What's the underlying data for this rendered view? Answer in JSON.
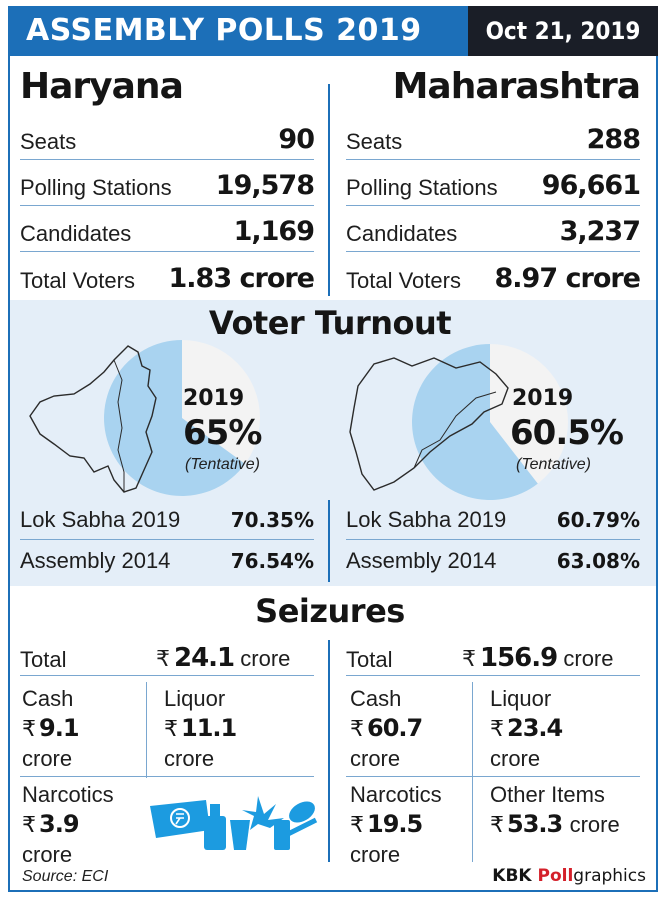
{
  "header": {
    "title": "ASSEMBLY POLLS 2019",
    "date": "Oct 21, 2019"
  },
  "states": [
    {
      "name": "Haryana",
      "stats": [
        {
          "label": "Seats",
          "value": "90"
        },
        {
          "label": "Polling Stations",
          "value": "19,578"
        },
        {
          "label": "Candidates",
          "value": "1,169"
        },
        {
          "label": "Total Voters",
          "value": "1.83 crore"
        }
      ],
      "turnout": {
        "year": "2019",
        "percent": "65%",
        "percent_value": 65,
        "note": "(Tentative)",
        "history": [
          {
            "label": "Lok Sabha 2019",
            "value": "70.35%"
          },
          {
            "label": "Assembly 2014",
            "value": "76.54%"
          }
        ]
      },
      "seizures": {
        "total_label": "Total",
        "total_value": "24.1",
        "total_unit": "crore",
        "cash_label": "Cash",
        "cash_value": "9.1",
        "cash_unit": "crore",
        "liquor_label": "Liquor",
        "liquor_value": "11.1",
        "liquor_unit": "crore",
        "narcotics_label": "Narcotics",
        "narcotics_value": "3.9",
        "narcotics_unit": "crore"
      }
    },
    {
      "name": "Maharashtra",
      "stats": [
        {
          "label": "Seats",
          "value": "288"
        },
        {
          "label": "Polling Stations",
          "value": "96,661"
        },
        {
          "label": "Candidates",
          "value": "3,237"
        },
        {
          "label": "Total Voters",
          "value": "8.97 crore"
        }
      ],
      "turnout": {
        "year": "2019",
        "percent": "60.5%",
        "percent_value": 60.5,
        "note": "(Tentative)",
        "history": [
          {
            "label": "Lok Sabha 2019",
            "value": "60.79%"
          },
          {
            "label": "Assembly 2014",
            "value": "63.08%"
          }
        ]
      },
      "seizures": {
        "total_label": "Total",
        "total_value": "156.9",
        "total_unit": "crore",
        "cash_label": "Cash",
        "cash_value": "60.7",
        "cash_unit": "crore",
        "liquor_label": "Liquor",
        "liquor_value": "23.4",
        "liquor_unit": "crore",
        "narcotics_label": "Narcotics",
        "narcotics_value": "19.5",
        "narcotics_unit": "crore",
        "other_label": "Other Items",
        "other_value": "53.3",
        "other_unit": "crore"
      }
    }
  ],
  "sections": {
    "turnout_title": "Voter Turnout",
    "seizures_title": "Seizures"
  },
  "currency_symbol": "₹",
  "footer": {
    "source": "Source: ECI",
    "brand_prefix": "KBK ",
    "brand_highlight": "Poll",
    "brand_suffix": "graphics"
  },
  "colors": {
    "header_blue": "#1c6fb8",
    "header_dark": "#1a1e27",
    "band": "#e4eef8",
    "pie_fill": "#a9d3f0",
    "pie_rest": "#f3f3f3",
    "brand_red": "#d4202a"
  }
}
